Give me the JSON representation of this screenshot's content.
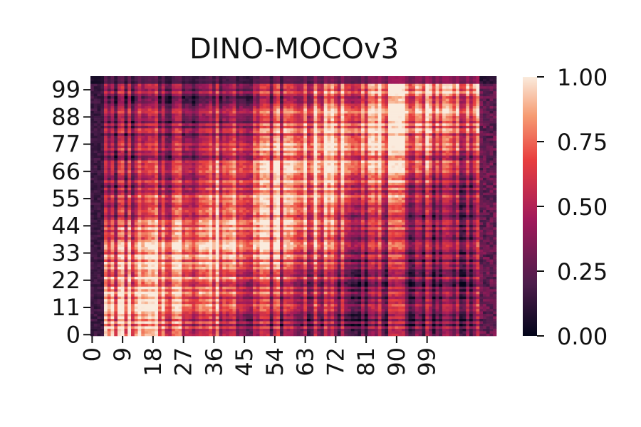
{
  "chart_data": {
    "type": "heatmap",
    "title": "DINO-MOCOv3",
    "xlabel": "",
    "ylabel": "",
    "n_cols": 120,
    "n_rows": 105,
    "x_tick_labels": [
      "0",
      "9",
      "18",
      "27",
      "36",
      "45",
      "54",
      "63",
      "72",
      "81",
      "90",
      "99"
    ],
    "y_tick_labels": [
      "0",
      "11",
      "22",
      "33",
      "44",
      "55",
      "66",
      "77",
      "88",
      "99"
    ],
    "y_origin": "bottom",
    "value_range": [
      0.0,
      1.0
    ],
    "colorbar": {
      "ticks": [
        "0.00",
        "0.25",
        "0.50",
        "0.75",
        "1.00"
      ],
      "colormap": "rocket",
      "colors": [
        "#03051a",
        "#4c1d4b",
        "#a11a5b",
        "#e83f3f",
        "#f69c73",
        "#faebdd"
      ]
    },
    "pattern_description_values": {
      "diagonal_peak": 0.9,
      "background": 0.35,
      "left_column_band": 0.1,
      "right_column_band": 0.15
    },
    "grid": false,
    "legend": "colorbar-right"
  }
}
